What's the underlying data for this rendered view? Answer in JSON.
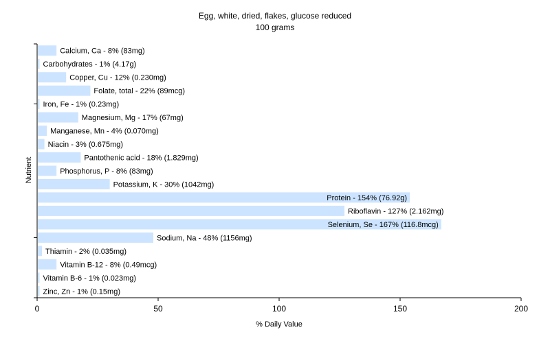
{
  "chart_data": {
    "type": "bar",
    "orientation": "horizontal",
    "title": "Egg, white, dried, flakes, glucose reduced",
    "subtitle": "100 grams",
    "xlabel": "% Daily Value",
    "ylabel": "Nutrient",
    "xlim": [
      0,
      200
    ],
    "xticks": [
      "0",
      "50",
      "100",
      "150",
      "200"
    ],
    "grid": false,
    "bar_color": "#cce4ff",
    "categories": [
      "Calcium, Ca",
      "Carbohydrates",
      "Copper, Cu",
      "Folate, total",
      "Iron, Fe",
      "Magnesium, Mg",
      "Manganese, Mn",
      "Niacin",
      "Pantothenic acid",
      "Phosphorus, P",
      "Potassium, K",
      "Protein",
      "Riboflavin",
      "Selenium, Se",
      "Sodium, Na",
      "Thiamin",
      "Vitamin B-12",
      "Vitamin B-6",
      "Zinc, Zn"
    ],
    "values": [
      8,
      1,
      12,
      22,
      1,
      17,
      4,
      3,
      18,
      8,
      30,
      154,
      127,
      167,
      48,
      2,
      8,
      1,
      1
    ],
    "labels": [
      "Calcium, Ca - 8% (83mg)",
      "Carbohydrates - 1% (4.17g)",
      "Copper, Cu - 12% (0.230mg)",
      "Folate, total - 22% (89mcg)",
      "Iron, Fe - 1% (0.23mg)",
      "Magnesium, Mg - 17% (67mg)",
      "Manganese, Mn - 4% (0.070mg)",
      "Niacin - 3% (0.675mg)",
      "Pantothenic acid - 18% (1.829mg)",
      "Phosphorus, P - 8% (83mg)",
      "Potassium, K - 30% (1042mg)",
      "Protein - 154% (76.92g)",
      "Riboflavin - 127% (2.162mg)",
      "Selenium, Se - 167% (116.8mcg)",
      "Sodium, Na - 48% (1156mg)",
      "Thiamin - 2% (0.035mg)",
      "Vitamin B-12 - 8% (0.49mcg)",
      "Vitamin B-6 - 1% (0.023mg)",
      "Zinc, Zn - 1% (0.15mg)"
    ]
  }
}
